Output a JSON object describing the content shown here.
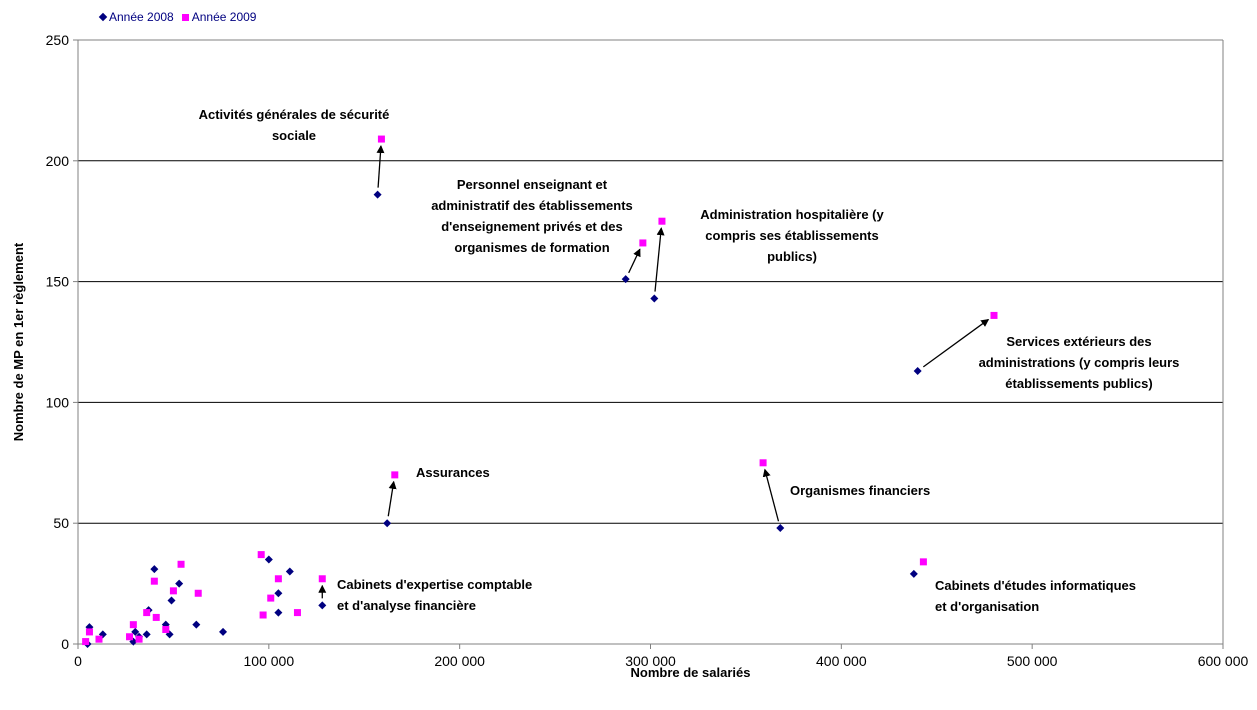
{
  "chart_data": {
    "type": "scatter",
    "xlabel": "Nombre de salariés",
    "ylabel": "Nombre de MP en 1er règlement",
    "xlim": [
      0,
      600000
    ],
    "ylim": [
      0,
      250
    ],
    "xticks": [
      0,
      100000,
      200000,
      300000,
      400000,
      500000,
      600000
    ],
    "xtick_labels": [
      "0",
      "100 000",
      "200 000",
      "300 000",
      "400 000",
      "500 000",
      "600 000"
    ],
    "yticks": [
      0,
      50,
      100,
      150,
      200,
      250
    ],
    "ytick_labels": [
      "0",
      "50",
      "100",
      "150",
      "200",
      "250"
    ],
    "grid": "horizontal",
    "legend_position": "top-left",
    "colors": {
      "series_2008": "#000080",
      "series_2009": "#ff00ff",
      "grid": "#000000",
      "axis": "#808080"
    },
    "series": [
      {
        "name": "Année 2008",
        "marker": "diamond",
        "points": [
          [
            5000,
            0
          ],
          [
            6000,
            7
          ],
          [
            13000,
            4
          ],
          [
            29000,
            1
          ],
          [
            30000,
            5
          ],
          [
            32000,
            3
          ],
          [
            36000,
            4
          ],
          [
            37000,
            14
          ],
          [
            40000,
            31
          ],
          [
            46000,
            8
          ],
          [
            48000,
            4
          ],
          [
            49000,
            18
          ],
          [
            53000,
            25
          ],
          [
            62000,
            8
          ],
          [
            76000,
            5
          ],
          [
            100000,
            35
          ],
          [
            105000,
            13
          ],
          [
            105000,
            21
          ],
          [
            111000,
            30
          ],
          [
            128000,
            16
          ],
          [
            157000,
            186
          ],
          [
            162000,
            50
          ],
          [
            287000,
            151
          ],
          [
            302000,
            143
          ],
          [
            368000,
            48
          ],
          [
            438000,
            29
          ],
          [
            440000,
            113
          ]
        ]
      },
      {
        "name": "Année 2009",
        "marker": "square",
        "points": [
          [
            4000,
            1
          ],
          [
            6000,
            5
          ],
          [
            11000,
            2
          ],
          [
            27000,
            3
          ],
          [
            29000,
            8
          ],
          [
            32000,
            2
          ],
          [
            36000,
            13
          ],
          [
            40000,
            26
          ],
          [
            41000,
            11
          ],
          [
            46000,
            6
          ],
          [
            50000,
            22
          ],
          [
            54000,
            33
          ],
          [
            63000,
            21
          ],
          [
            96000,
            37
          ],
          [
            97000,
            12
          ],
          [
            101000,
            19
          ],
          [
            105000,
            27
          ],
          [
            115000,
            13
          ],
          [
            128000,
            27
          ],
          [
            159000,
            209
          ],
          [
            166000,
            70
          ],
          [
            296000,
            166
          ],
          [
            306000,
            175
          ],
          [
            359000,
            75
          ],
          [
            443000,
            34
          ],
          [
            480000,
            136
          ]
        ]
      }
    ],
    "annotations": [
      {
        "lines": [
          "Activités générales de sécurité",
          "sociale"
        ]
      },
      {
        "lines": [
          "Personnel enseignant et",
          "administratif des établissements",
          "d'enseignement privés et des",
          "organismes de formation"
        ]
      },
      {
        "lines": [
          "Administration hospitalière (y",
          "compris ses établissements",
          "publics)"
        ]
      },
      {
        "lines": [
          "Services extérieurs des",
          "administrations (y compris leurs",
          "établissements publics)"
        ]
      },
      {
        "lines": [
          "Assurances"
        ]
      },
      {
        "lines": [
          "Organismes financiers"
        ]
      },
      {
        "lines": [
          "Cabinets d'expertise comptable",
          "et d'analyse financière"
        ]
      },
      {
        "lines": [
          "Cabinets d'études informatiques",
          "et d'organisation"
        ]
      }
    ],
    "arrows": [
      {
        "from": [
          157000,
          186
        ],
        "to": [
          159000,
          209
        ]
      },
      {
        "from": [
          162000,
          50
        ],
        "to": [
          166000,
          70
        ]
      },
      {
        "from": [
          287000,
          151
        ],
        "to": [
          296000,
          166
        ]
      },
      {
        "from": [
          302000,
          143
        ],
        "to": [
          306000,
          175
        ]
      },
      {
        "from": [
          368000,
          48
        ],
        "to": [
          359000,
          75
        ]
      },
      {
        "from": [
          440000,
          113
        ],
        "to": [
          480000,
          136
        ]
      },
      {
        "from": [
          128000,
          16
        ],
        "to": [
          128000,
          27
        ]
      }
    ]
  }
}
